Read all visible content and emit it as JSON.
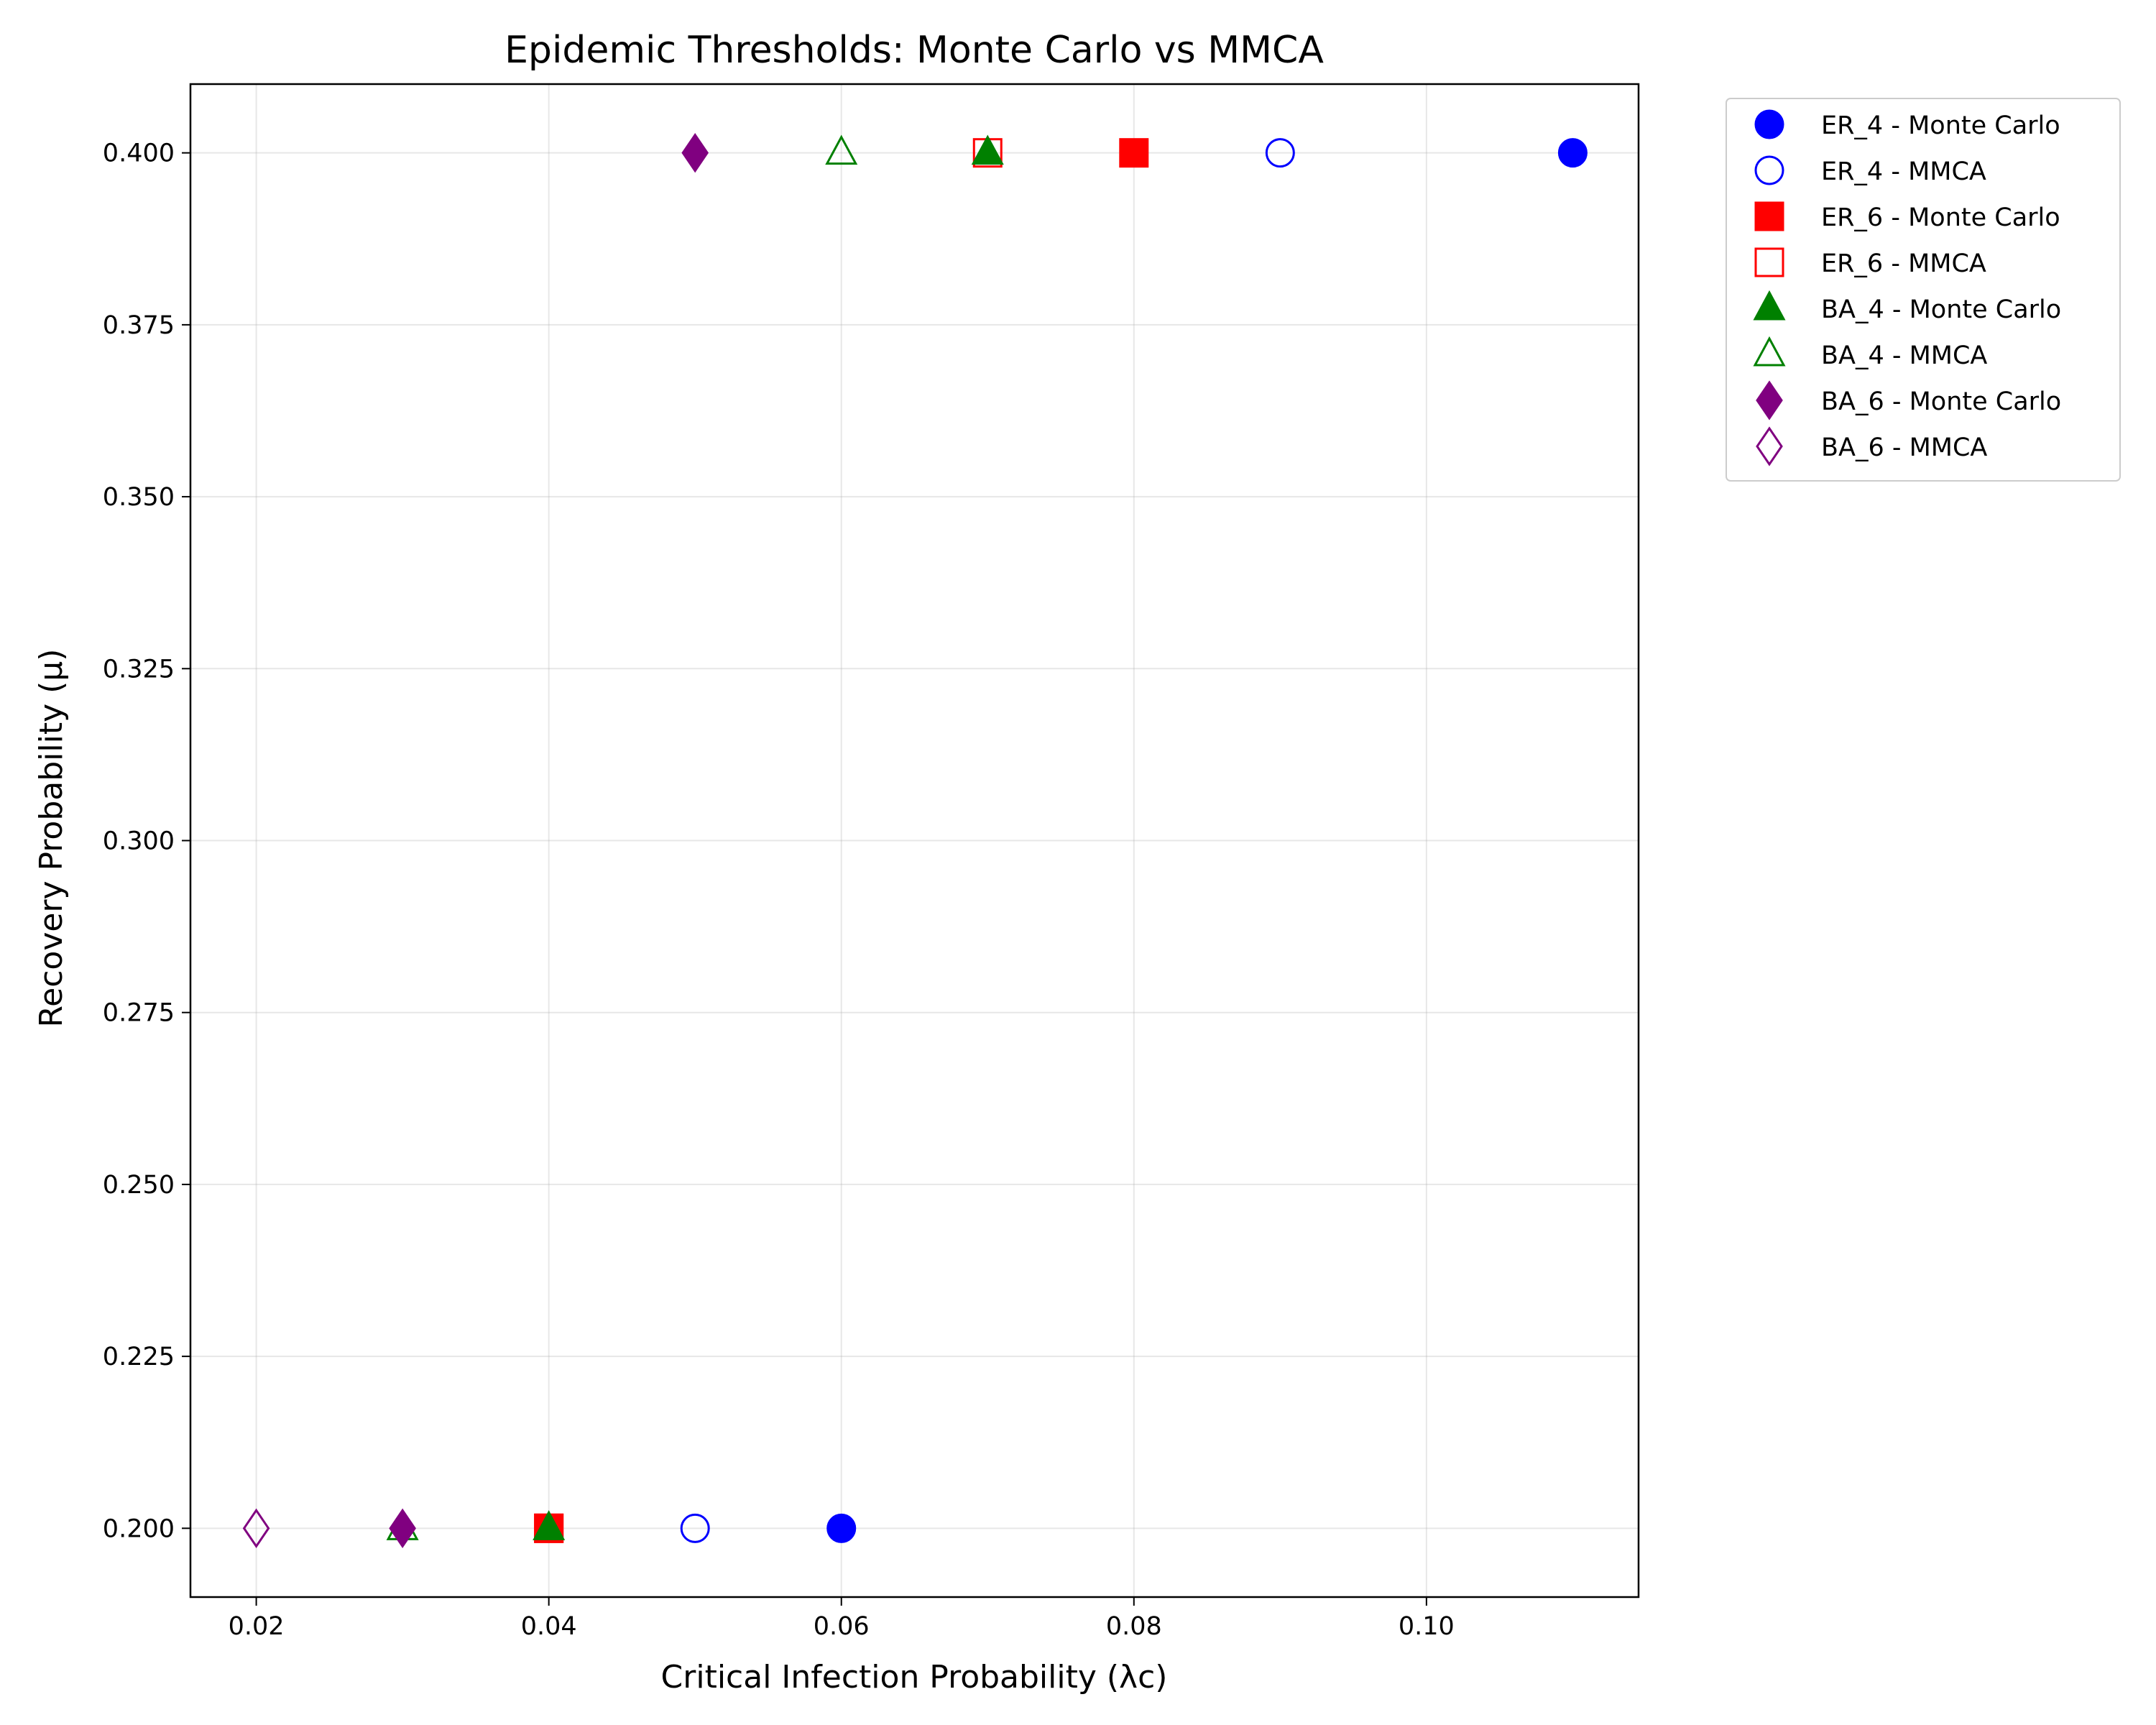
{
  "chart_data": {
    "type": "scatter",
    "title": "Epidemic Thresholds: Monte Carlo vs MMCA",
    "xlabel": "Critical Infection Probability (λc)",
    "ylabel": "Recovery Probability (μ)",
    "xlim": [
      0.0155,
      0.1145
    ],
    "ylim": [
      0.19,
      0.41
    ],
    "xticks": [
      0.02,
      0.04,
      0.06,
      0.08,
      0.1
    ],
    "xtick_labels": [
      "0.02",
      "0.04",
      "0.06",
      "0.08",
      "0.10"
    ],
    "yticks": [
      0.2,
      0.225,
      0.25,
      0.275,
      0.3,
      0.325,
      0.35,
      0.375,
      0.4
    ],
    "ytick_labels": [
      "0.200",
      "0.225",
      "0.250",
      "0.275",
      "0.300",
      "0.325",
      "0.350",
      "0.375",
      "0.400"
    ],
    "grid": true,
    "legend_position": "outside-top-right",
    "series": [
      {
        "name": "ER_4 - Monte Carlo",
        "marker": "circle",
        "filled": true,
        "color": "#0000ff",
        "points": [
          {
            "x": 0.06,
            "y": 0.2
          },
          {
            "x": 0.11,
            "y": 0.4
          }
        ]
      },
      {
        "name": "ER_4 - MMCA",
        "marker": "circle",
        "filled": false,
        "color": "#0000ff",
        "points": [
          {
            "x": 0.05,
            "y": 0.2
          },
          {
            "x": 0.09,
            "y": 0.4
          }
        ]
      },
      {
        "name": "ER_6 - Monte Carlo",
        "marker": "square",
        "filled": true,
        "color": "#ff0000",
        "points": [
          {
            "x": 0.04,
            "y": 0.2
          },
          {
            "x": 0.08,
            "y": 0.4
          }
        ]
      },
      {
        "name": "ER_6 - MMCA",
        "marker": "square",
        "filled": false,
        "color": "#ff0000",
        "points": [
          {
            "x": 0.04,
            "y": 0.2
          },
          {
            "x": 0.07,
            "y": 0.4
          }
        ]
      },
      {
        "name": "BA_4 - Monte Carlo",
        "marker": "triangle",
        "filled": true,
        "color": "#008000",
        "points": [
          {
            "x": 0.04,
            "y": 0.2
          },
          {
            "x": 0.07,
            "y": 0.4
          }
        ]
      },
      {
        "name": "BA_4 - MMCA",
        "marker": "triangle",
        "filled": false,
        "color": "#008000",
        "points": [
          {
            "x": 0.03,
            "y": 0.2
          },
          {
            "x": 0.06,
            "y": 0.4
          }
        ]
      },
      {
        "name": "BA_6 - Monte Carlo",
        "marker": "diamond",
        "filled": true,
        "color": "#800080",
        "points": [
          {
            "x": 0.03,
            "y": 0.2
          },
          {
            "x": 0.05,
            "y": 0.4
          }
        ]
      },
      {
        "name": "BA_6 - MMCA",
        "marker": "diamond",
        "filled": false,
        "color": "#800080",
        "points": [
          {
            "x": 0.02,
            "y": 0.2
          }
        ]
      }
    ]
  }
}
